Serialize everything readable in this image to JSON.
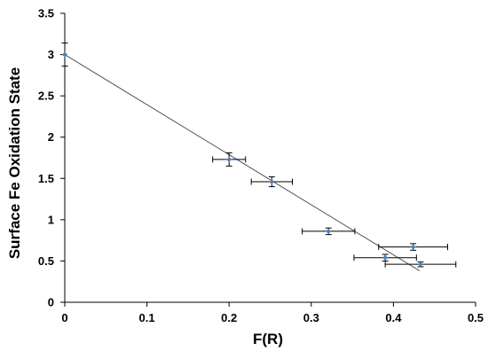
{
  "chart_data": {
    "type": "scatter",
    "title": "",
    "xlabel": "F(R)",
    "ylabel": "Surface Fe Oxidation State",
    "xlim": [
      0,
      0.5
    ],
    "ylim": [
      0,
      3.5
    ],
    "x_ticks": [
      0,
      0.1,
      0.2,
      0.3,
      0.4,
      0.5
    ],
    "y_ticks": [
      0,
      0.5,
      1,
      1.5,
      2,
      2.5,
      3,
      3.5
    ],
    "x_tick_labels": [
      "0",
      "0.1",
      "0.2",
      "0.3",
      "0.4",
      "0.5"
    ],
    "y_tick_labels": [
      "0",
      "0.5",
      "1",
      "1.5",
      "2",
      "2.5",
      "3",
      "3.5"
    ],
    "grid": false,
    "legend": "none",
    "series": [
      {
        "color": "#4f81bd",
        "points": [
          {
            "x": 0.0,
            "y": 3.0,
            "xerr": 0.0,
            "yerr": 0.14
          },
          {
            "x": 0.2,
            "y": 1.73,
            "xerr": 0.02,
            "yerr": 0.08
          },
          {
            "x": 0.252,
            "y": 1.46,
            "xerr": 0.025,
            "yerr": 0.06
          },
          {
            "x": 0.321,
            "y": 0.86,
            "xerr": 0.032,
            "yerr": 0.04
          },
          {
            "x": 0.39,
            "y": 0.54,
            "xerr": 0.038,
            "yerr": 0.04
          },
          {
            "x": 0.424,
            "y": 0.67,
            "xerr": 0.042,
            "yerr": 0.04
          },
          {
            "x": 0.433,
            "y": 0.46,
            "xerr": 0.043,
            "yerr": 0.03
          }
        ]
      }
    ],
    "trendline": {
      "color": "#555555",
      "x_start": 0.0,
      "y_start": 3.0,
      "x_end": 0.432,
      "y_end": 0.38
    },
    "colors": {
      "axis": "#000000",
      "error_bar": "#000000"
    }
  }
}
